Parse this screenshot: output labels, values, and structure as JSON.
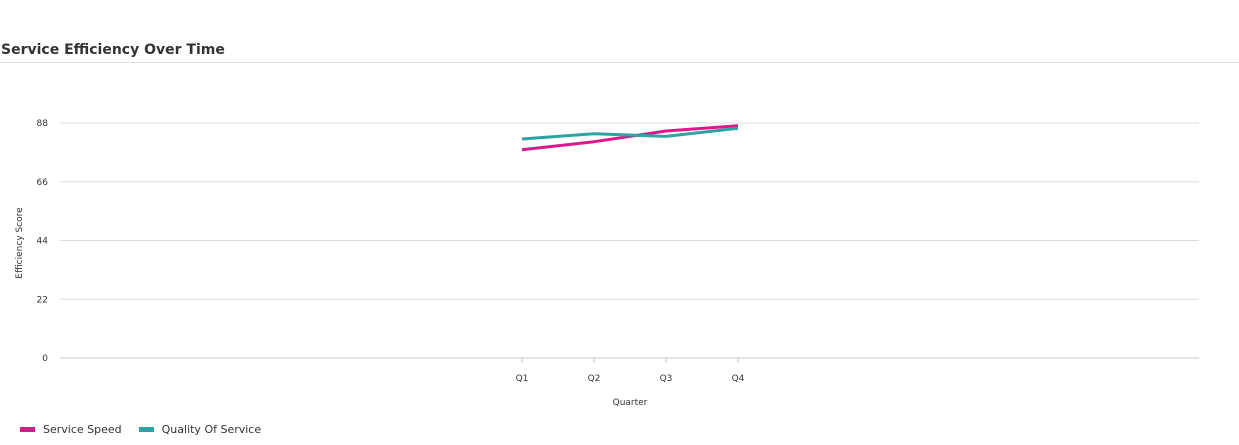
{
  "header": {
    "title": "Service Efficiency Over Time"
  },
  "chart_data": {
    "type": "line",
    "x": [
      "Q1",
      "Q2",
      "Q3",
      "Q4"
    ],
    "series": [
      {
        "name": "Service Speed",
        "values": [
          78,
          81,
          85,
          87
        ],
        "color": "#e0168c"
      },
      {
        "name": "Quality Of Service",
        "values": [
          82,
          84,
          83,
          86
        ],
        "color": "#2ea3a3"
      }
    ],
    "xlabel": "Quarter",
    "ylabel": "Efficiency Score",
    "ylim": [
      0,
      88
    ],
    "yticks": [
      "0",
      "22",
      "44",
      "66",
      "88"
    ],
    "grid": true,
    "legend": "bottom-left"
  }
}
